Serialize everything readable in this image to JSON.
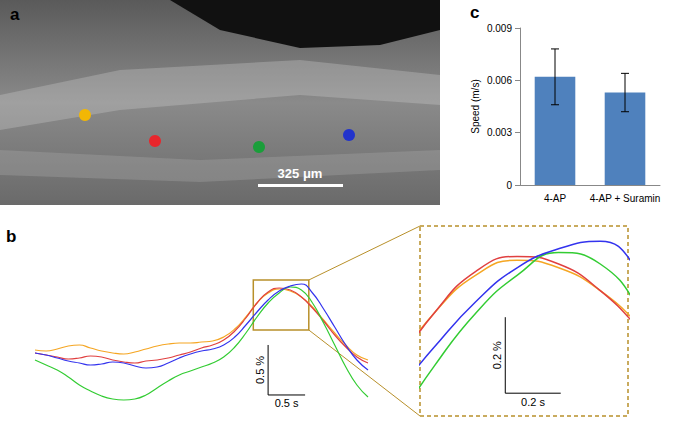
{
  "panel_labels": [
    "a",
    "b",
    "c"
  ],
  "image": {
    "scale_bar_label": "325 μm",
    "marker_colors": [
      "#f2b705",
      "#e8262c",
      "#1a9e3a",
      "#2233cc"
    ]
  },
  "chart_data": [
    {
      "type": "line",
      "x": [
        0,
        0.15,
        0.3,
        0.45,
        0.6,
        0.75,
        0.9,
        1.05,
        1.2,
        1.35,
        1.5,
        1.65,
        1.8,
        1.95,
        2.1,
        2.25,
        2.4,
        2.55,
        2.7,
        2.85,
        3.0,
        3.15,
        3.3,
        3.45,
        3.6,
        3.75,
        3.9,
        4.05,
        4.2,
        4.35,
        4.5
      ],
      "series": [
        {
          "color": "#f5a623",
          "values": [
            0.65,
            0.64,
            0.66,
            0.69,
            0.7,
            0.67,
            0.64,
            0.62,
            0.61,
            0.63,
            0.66,
            0.69,
            0.71,
            0.72,
            0.72,
            0.73,
            0.74,
            0.78,
            0.86,
            0.98,
            1.12,
            1.22,
            1.26,
            1.24,
            1.18,
            1.08,
            0.95,
            0.82,
            0.7,
            0.6,
            0.55
          ]
        },
        {
          "color": "#e04040",
          "values": [
            0.62,
            0.6,
            0.58,
            0.56,
            0.57,
            0.59,
            0.58,
            0.55,
            0.53,
            0.52,
            0.54,
            0.55,
            0.57,
            0.6,
            0.63,
            0.67,
            0.7,
            0.75,
            0.84,
            0.97,
            1.12,
            1.23,
            1.27,
            1.25,
            1.18,
            1.07,
            0.94,
            0.8,
            0.68,
            0.58,
            0.52
          ]
        },
        {
          "color": "#33cc33",
          "values": [
            0.55,
            0.5,
            0.45,
            0.38,
            0.3,
            0.24,
            0.19,
            0.16,
            0.15,
            0.16,
            0.2,
            0.27,
            0.34,
            0.4,
            0.44,
            0.48,
            0.52,
            0.58,
            0.68,
            0.82,
            0.98,
            1.12,
            1.22,
            1.28,
            1.25,
            1.12,
            0.92,
            0.7,
            0.48,
            0.3,
            0.18
          ]
        },
        {
          "color": "#3333ee",
          "values": [
            0.62,
            0.6,
            0.57,
            0.54,
            0.52,
            0.5,
            0.51,
            0.53,
            0.52,
            0.49,
            0.47,
            0.48,
            0.52,
            0.57,
            0.61,
            0.64,
            0.66,
            0.7,
            0.78,
            0.9,
            1.03,
            1.15,
            1.24,
            1.29,
            1.31,
            1.22,
            1.06,
            0.88,
            0.7,
            0.55,
            0.45
          ]
        }
      ],
      "xlim": [
        0,
        4.5
      ],
      "ylim": [
        0,
        1.4
      ],
      "tick_labels": false,
      "scale_bars": [
        {
          "axis": "y",
          "value": 0.5,
          "label": "0.5 %"
        },
        {
          "axis": "x",
          "value": 0.5,
          "label": "0.5 s"
        }
      ],
      "inset": {
        "xlim": [
          2.95,
          3.7
        ],
        "ylim": [
          0.85,
          1.35
        ],
        "scale_bars": [
          {
            "axis": "y",
            "value": 0.2,
            "label": "0.2 %"
          },
          {
            "axis": "x",
            "value": 0.2,
            "label": "0.2 s"
          }
        ]
      }
    },
    {
      "type": "bar",
      "categories": [
        "4-AP",
        "4-AP + Suramin"
      ],
      "values": [
        0.0062,
        0.0053
      ],
      "errors": [
        0.0016,
        0.0011
      ],
      "color": "#4f81bd",
      "ylabel": "Speed (m/s)",
      "ylim": [
        0,
        0.009
      ],
      "yticks": [
        0,
        0.003,
        0.006,
        0.009
      ]
    }
  ]
}
